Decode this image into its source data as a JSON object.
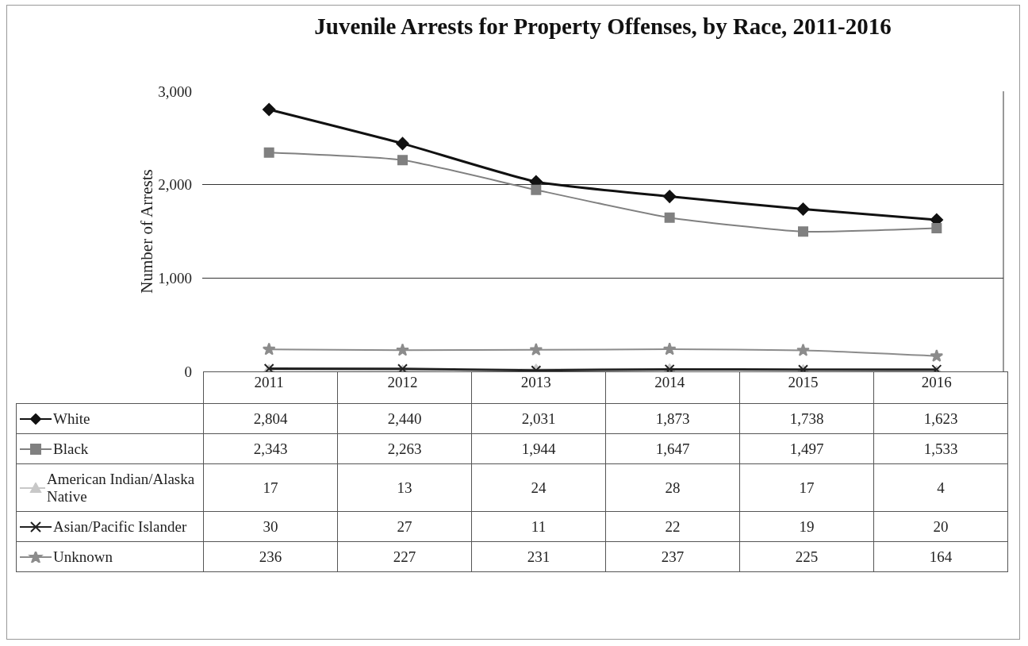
{
  "chart_data": {
    "type": "line",
    "title": "Juvenile Arrests for Property Offenses, by Race, 2011-2016",
    "ylabel": "Number of Arrests",
    "categories": [
      "2011",
      "2012",
      "2013",
      "2014",
      "2015",
      "2016"
    ],
    "series": [
      {
        "name": "White",
        "color": "#111111",
        "marker": "diamond",
        "values": [
          2804,
          2440,
          2031,
          1873,
          1738,
          1623
        ],
        "value_labels": [
          "2,804",
          "2,440",
          "2,031",
          "1,873",
          "1,738",
          "1,623"
        ]
      },
      {
        "name": "Black",
        "color": "#808080",
        "marker": "square",
        "values": [
          2343,
          2263,
          1944,
          1647,
          1497,
          1533
        ],
        "value_labels": [
          "2,343",
          "2,263",
          "1,944",
          "1,647",
          "1,497",
          "1,533"
        ]
      },
      {
        "name": "American Indian/Alaska Native",
        "color": "#c8c8c8",
        "marker": "triangle",
        "values": [
          17,
          13,
          24,
          28,
          17,
          4
        ],
        "value_labels": [
          "17",
          "13",
          "24",
          "28",
          "17",
          "4"
        ]
      },
      {
        "name": "Asian/Pacific Islander",
        "color": "#222222",
        "marker": "cross",
        "values": [
          30,
          27,
          11,
          22,
          19,
          20
        ],
        "value_labels": [
          "30",
          "27",
          "11",
          "22",
          "19",
          "20"
        ]
      },
      {
        "name": "Unknown",
        "color": "#8c8c8c",
        "marker": "star",
        "values": [
          236,
          227,
          231,
          237,
          225,
          164
        ],
        "value_labels": [
          "236",
          "227",
          "231",
          "237",
          "225",
          "164"
        ]
      }
    ],
    "ylim": [
      0,
      3000
    ],
    "yticks": [
      {
        "value": 0,
        "label": "0"
      },
      {
        "value": 1000,
        "label": "1,000"
      },
      {
        "value": 2000,
        "label": "2,000"
      },
      {
        "value": 3000,
        "label": "3,000"
      }
    ],
    "grid": "y",
    "legend": "bottom",
    "line_style": "solid"
  }
}
